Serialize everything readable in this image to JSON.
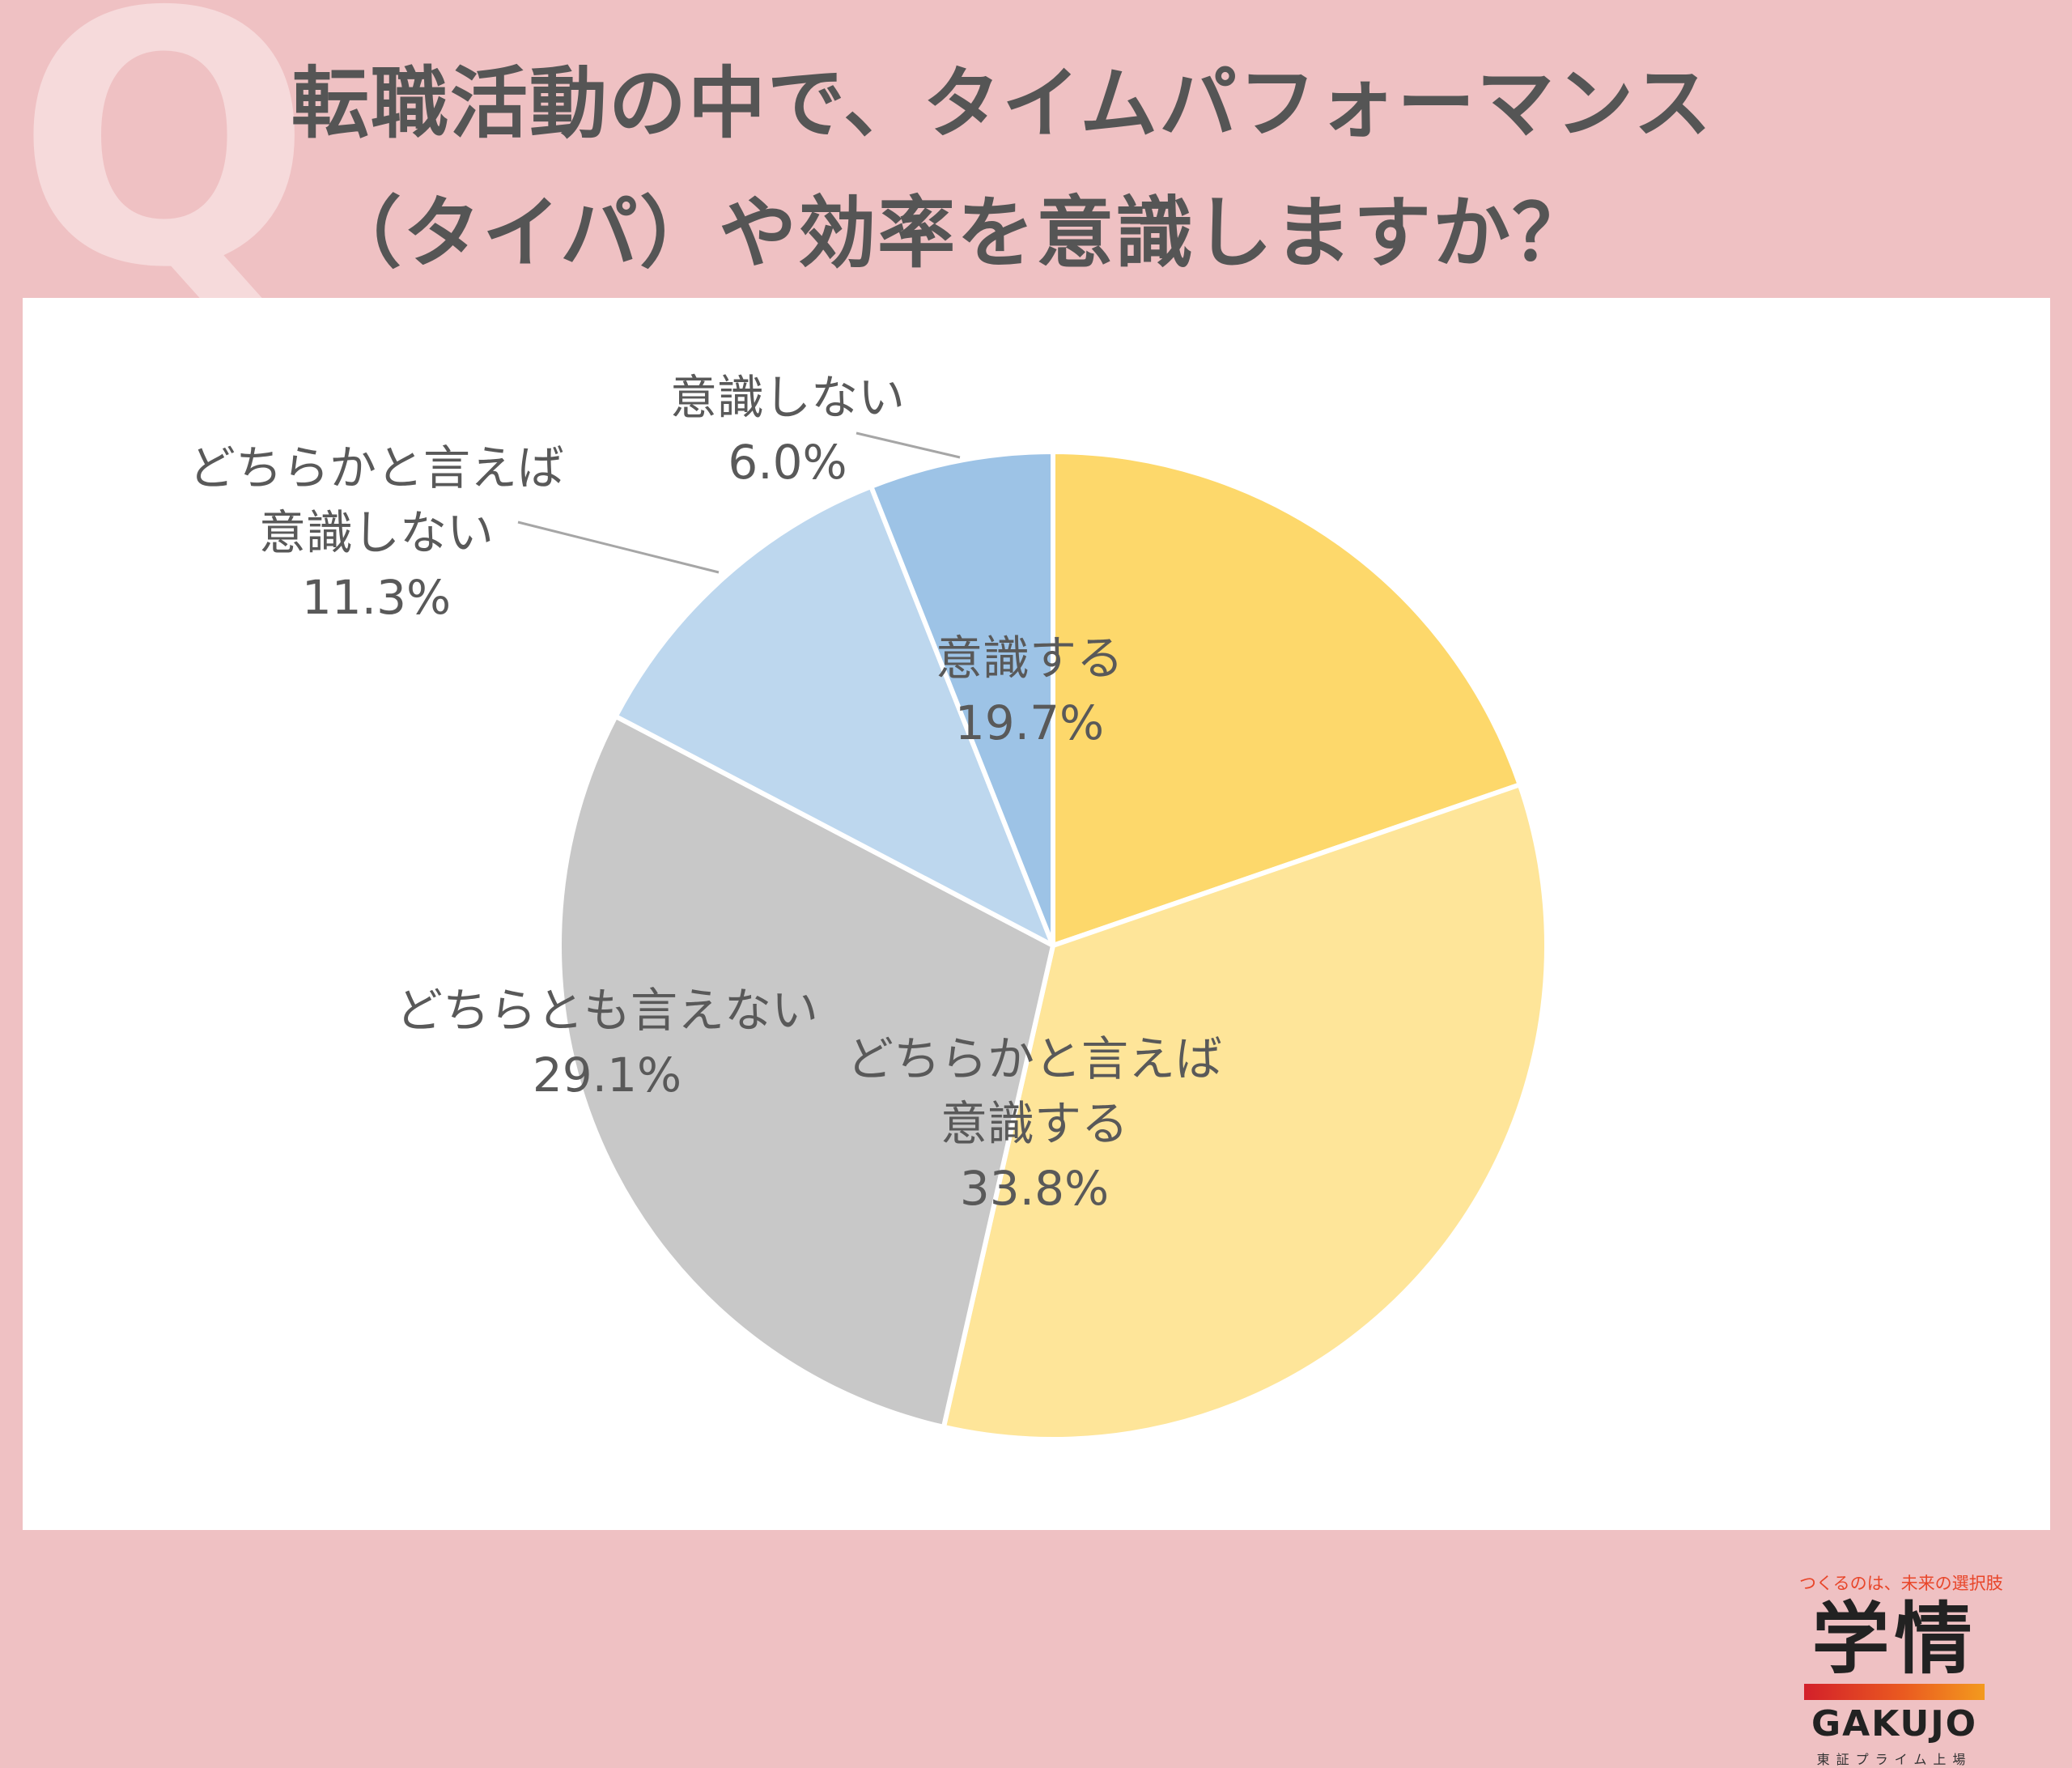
{
  "title": {
    "line1": "転職活動の中で、タイムパフォーマンス",
    "line2": "（タイパ）や効率を意識しますか？"
  },
  "q_mark": "Q",
  "logo": {
    "tagline": "つくるのは、未来の選択肢",
    "kanji": "学情",
    "english": "GAKUJO",
    "sub": "東証プライム上場"
  },
  "chart_data": {
    "type": "pie",
    "start": "12 o'clock",
    "direction": "clockwise",
    "slices": [
      {
        "label_lines": [
          "意識する"
        ],
        "value": 19.7,
        "value_text": "19.7%",
        "color": "#fdd86b"
      },
      {
        "label_lines": [
          "どちらかと言えば",
          "意識する"
        ],
        "value": 33.8,
        "value_text": "33.8%",
        "color": "#fee599"
      },
      {
        "label_lines": [
          "どちらとも言えない"
        ],
        "value": 29.1,
        "value_text": "29.1%",
        "color": "#c8c8c8"
      },
      {
        "label_lines": [
          "どちらかと言えば",
          "意識しない"
        ],
        "value": 11.3,
        "value_text": "11.3%",
        "color": "#bdd7ee"
      },
      {
        "label_lines": [
          "意識しない"
        ],
        "value": 6.0,
        "value_text": "6.0%",
        "color": "#9dc3e6"
      }
    ]
  }
}
